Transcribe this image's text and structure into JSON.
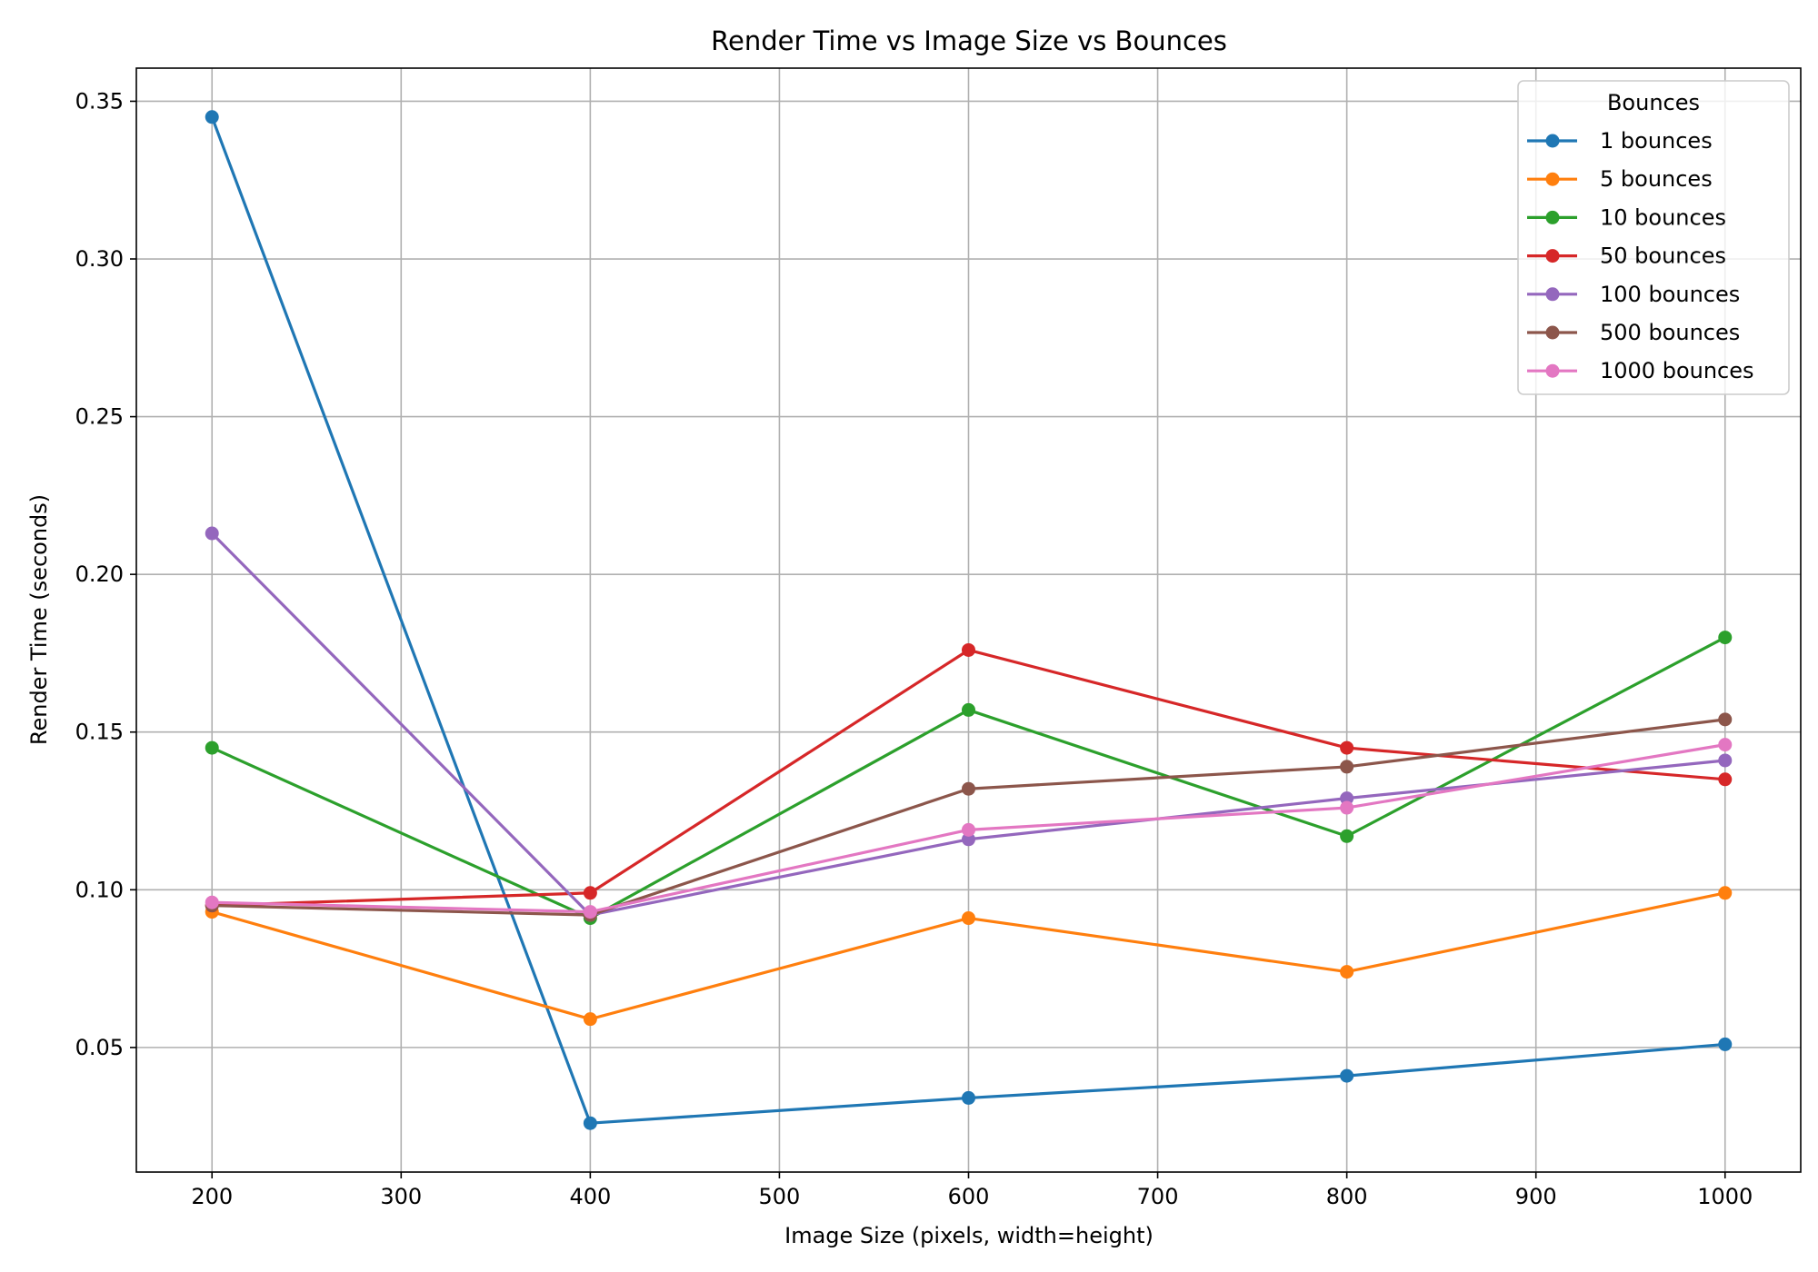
{
  "chart_data": {
    "type": "line",
    "title": "Render Time vs Image Size vs Bounces",
    "xlabel": "Image Size (pixels, width=height)",
    "ylabel": "Render Time (seconds)",
    "xlim": [
      160,
      1040
    ],
    "ylim": [
      0.0105,
      0.3605
    ],
    "xticks": [
      200,
      300,
      400,
      500,
      600,
      700,
      800,
      900,
      1000
    ],
    "yticks": [
      0.05,
      0.1,
      0.15,
      0.2,
      0.25,
      0.3,
      0.35
    ],
    "xtick_labels": [
      "200",
      "300",
      "400",
      "500",
      "600",
      "700",
      "800",
      "900",
      "1000"
    ],
    "ytick_labels": [
      "0.05",
      "0.10",
      "0.15",
      "0.20",
      "0.25",
      "0.30",
      "0.35"
    ],
    "grid": true,
    "legend": {
      "title": "Bounces",
      "placement": "top-right"
    },
    "x": [
      200,
      400,
      600,
      800,
      1000
    ],
    "series": [
      {
        "name": "1 bounces",
        "color": "#1f77b4",
        "values": [
          0.345,
          0.026,
          0.034,
          0.041,
          0.051
        ]
      },
      {
        "name": "5 bounces",
        "color": "#ff7f0e",
        "values": [
          0.093,
          0.059,
          0.091,
          0.074,
          0.099
        ]
      },
      {
        "name": "10 bounces",
        "color": "#2ca02c",
        "values": [
          0.145,
          0.091,
          0.157,
          0.117,
          0.18
        ]
      },
      {
        "name": "50 bounces",
        "color": "#d62728",
        "values": [
          0.095,
          0.099,
          0.176,
          0.145,
          0.135
        ]
      },
      {
        "name": "100 bounces",
        "color": "#9467bd",
        "values": [
          0.213,
          0.092,
          0.116,
          0.129,
          0.141
        ]
      },
      {
        "name": "500 bounces",
        "color": "#8c564b",
        "values": [
          0.095,
          0.092,
          0.132,
          0.139,
          0.154
        ]
      },
      {
        "name": "1000 bounces",
        "color": "#e377c2",
        "values": [
          0.096,
          0.093,
          0.119,
          0.126,
          0.146
        ]
      }
    ]
  }
}
